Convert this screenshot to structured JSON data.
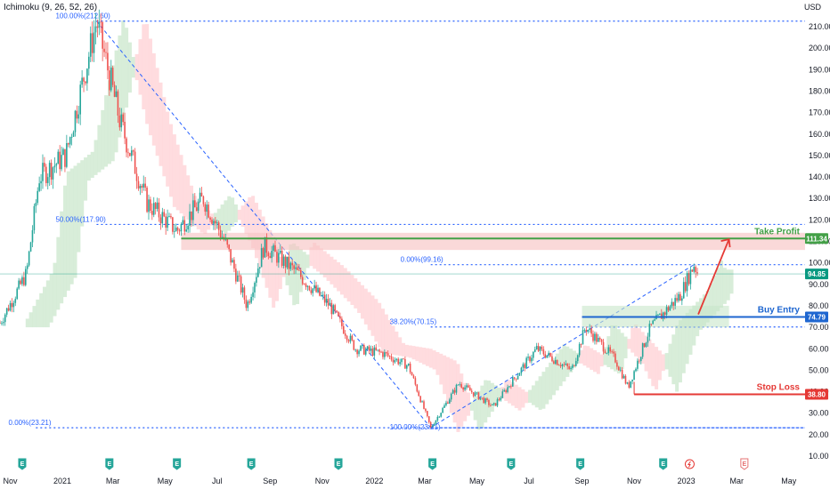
{
  "header": {
    "indicator": "Ichimoku (9, 26, 52, 26)",
    "currency": "USD"
  },
  "colors": {
    "bull": "#26a69a",
    "bear": "#ef5350",
    "fib": "#2962ff",
    "take_profit": "#43a047",
    "buy_entry": "#1e66d0",
    "stop_loss": "#e53935",
    "current": "#089981",
    "cloud_green": "#c8e6c9",
    "cloud_red": "#ffcdd2",
    "zone": "#f8c4c4"
  },
  "chart_data": {
    "type": "candlestick",
    "title": "",
    "xlabel": "",
    "ylabel": "",
    "ylim": [
      6,
      219
    ],
    "xlim": [
      "2020-10-20",
      "2023-05-20"
    ],
    "grid": false,
    "y_ticks": [
      "210.00",
      "200.00",
      "190.00",
      "180.00",
      "170.00",
      "160.00",
      "150.00",
      "140.00",
      "130.00",
      "120.00",
      "110.00",
      "100.00",
      "90.00",
      "80.00",
      "70.00",
      "60.00",
      "50.00",
      "40.00",
      "30.00",
      "20.00",
      "10.00"
    ],
    "x_ticks": [
      {
        "label": "Nov",
        "date": "2020-11-01"
      },
      {
        "label": "2021",
        "date": "2021-01-01"
      },
      {
        "label": "Mar",
        "date": "2021-03-01"
      },
      {
        "label": "May",
        "date": "2021-05-01"
      },
      {
        "label": "Jul",
        "date": "2021-07-01"
      },
      {
        "label": "Sep",
        "date": "2021-09-01"
      },
      {
        "label": "Nov",
        "date": "2021-11-01"
      },
      {
        "label": "2022",
        "date": "2022-01-01"
      },
      {
        "label": "Mar",
        "date": "2022-03-01"
      },
      {
        "label": "May",
        "date": "2022-05-01"
      },
      {
        "label": "Jul",
        "date": "2022-07-01"
      },
      {
        "label": "Sep",
        "date": "2022-09-01"
      },
      {
        "label": "Nov",
        "date": "2022-11-01"
      },
      {
        "label": "2023",
        "date": "2023-01-01"
      },
      {
        "label": "Mar",
        "date": "2023-03-01"
      },
      {
        "label": "May",
        "date": "2023-05-01"
      }
    ],
    "price_path": [
      [
        "2020-10-20",
        72
      ],
      [
        "2020-11-20",
        95
      ],
      [
        "2020-12-05",
        140
      ],
      [
        "2021-01-05",
        150
      ],
      [
        "2021-02-10",
        212.6
      ],
      [
        "2021-03-10",
        165
      ],
      [
        "2021-04-10",
        128
      ],
      [
        "2021-05-15",
        115
      ],
      [
        "2021-06-15",
        130
      ],
      [
        "2021-07-10",
        110
      ],
      [
        "2021-08-05",
        80
      ],
      [
        "2021-08-25",
        108
      ],
      [
        "2021-10-01",
        96
      ],
      [
        "2021-11-10",
        80
      ],
      [
        "2021-12-10",
        60
      ],
      [
        "2022-01-10",
        58
      ],
      [
        "2022-02-10",
        52
      ],
      [
        "2022-03-08",
        23.21
      ],
      [
        "2022-04-10",
        44
      ],
      [
        "2022-05-20",
        33
      ],
      [
        "2022-07-10",
        60
      ],
      [
        "2022-08-20",
        50
      ],
      [
        "2022-09-05",
        70.15
      ],
      [
        "2022-10-10",
        55
      ],
      [
        "2022-10-25",
        42
      ],
      [
        "2022-11-20",
        70
      ],
      [
        "2022-12-25",
        85
      ],
      [
        "2023-01-10",
        99.16
      ],
      [
        "2023-01-15",
        94.85
      ]
    ],
    "fibonacci": [
      {
        "label": "100.00%(212.60)",
        "value": 212.6
      },
      {
        "label": "50.00%(117.90)",
        "value": 117.9
      },
      {
        "label": "0.00%(99.16)",
        "value": 99.16
      },
      {
        "label": "38.20%(70.15)",
        "value": 70.15
      },
      {
        "label": "0.00%(23.21)",
        "value": 23.21
      },
      {
        "label": "100.00%(23.21)",
        "value": 23.21
      }
    ],
    "levels": [
      {
        "name": "Take Profit",
        "value": 111.34,
        "badge": "111.34"
      },
      {
        "name": "Buy Entry",
        "value": 74.79,
        "badge": "74.79"
      },
      {
        "name": "Stop Loss",
        "value": 38.8,
        "badge": "38.80"
      }
    ],
    "current_price": {
      "value": 94.85,
      "badge": "94.85"
    },
    "events": [
      {
        "date": "2020-11-15",
        "type": "E"
      },
      {
        "date": "2021-02-25",
        "type": "E"
      },
      {
        "date": "2021-05-15",
        "type": "E"
      },
      {
        "date": "2021-08-10",
        "type": "E"
      },
      {
        "date": "2021-11-20",
        "type": "E"
      },
      {
        "date": "2022-03-10",
        "type": "E"
      },
      {
        "date": "2022-06-10",
        "type": "E"
      },
      {
        "date": "2022-08-30",
        "type": "E"
      },
      {
        "date": "2022-12-05",
        "type": "E"
      },
      {
        "date": "2023-03-10",
        "type": "E"
      },
      {
        "date": "2023-01-05",
        "type": "lightning"
      }
    ]
  }
}
